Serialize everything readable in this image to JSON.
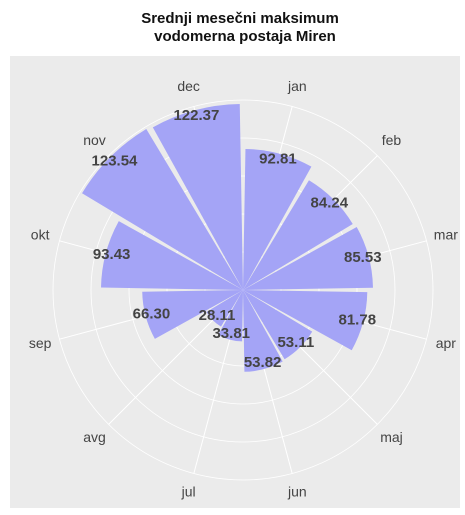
{
  "chart_data": {
    "type": "polar_bar",
    "title": [
      "Srednji mesečni maksimum",
      "vodomerna postaja Miren"
    ],
    "categories": [
      "jan",
      "feb",
      "mar",
      "apr",
      "maj",
      "jun",
      "jul",
      "avg",
      "sep",
      "okt",
      "nov",
      "dec"
    ],
    "values": [
      92.81,
      84.24,
      85.53,
      81.78,
      53.11,
      53.82,
      33.81,
      28.11,
      66.3,
      93.43,
      123.54,
      122.37
    ],
    "value_labels": [
      "92.81",
      "84.24",
      "85.53",
      "81.78",
      "53.11",
      "53.82",
      "33.81",
      "28.11",
      "66.30",
      "93.43",
      "123.54",
      "122.37"
    ],
    "color": "#a4a4f6",
    "ylim": [
      0,
      125
    ],
    "yticks": [
      25,
      50,
      75,
      100,
      125
    ],
    "grid": true
  }
}
